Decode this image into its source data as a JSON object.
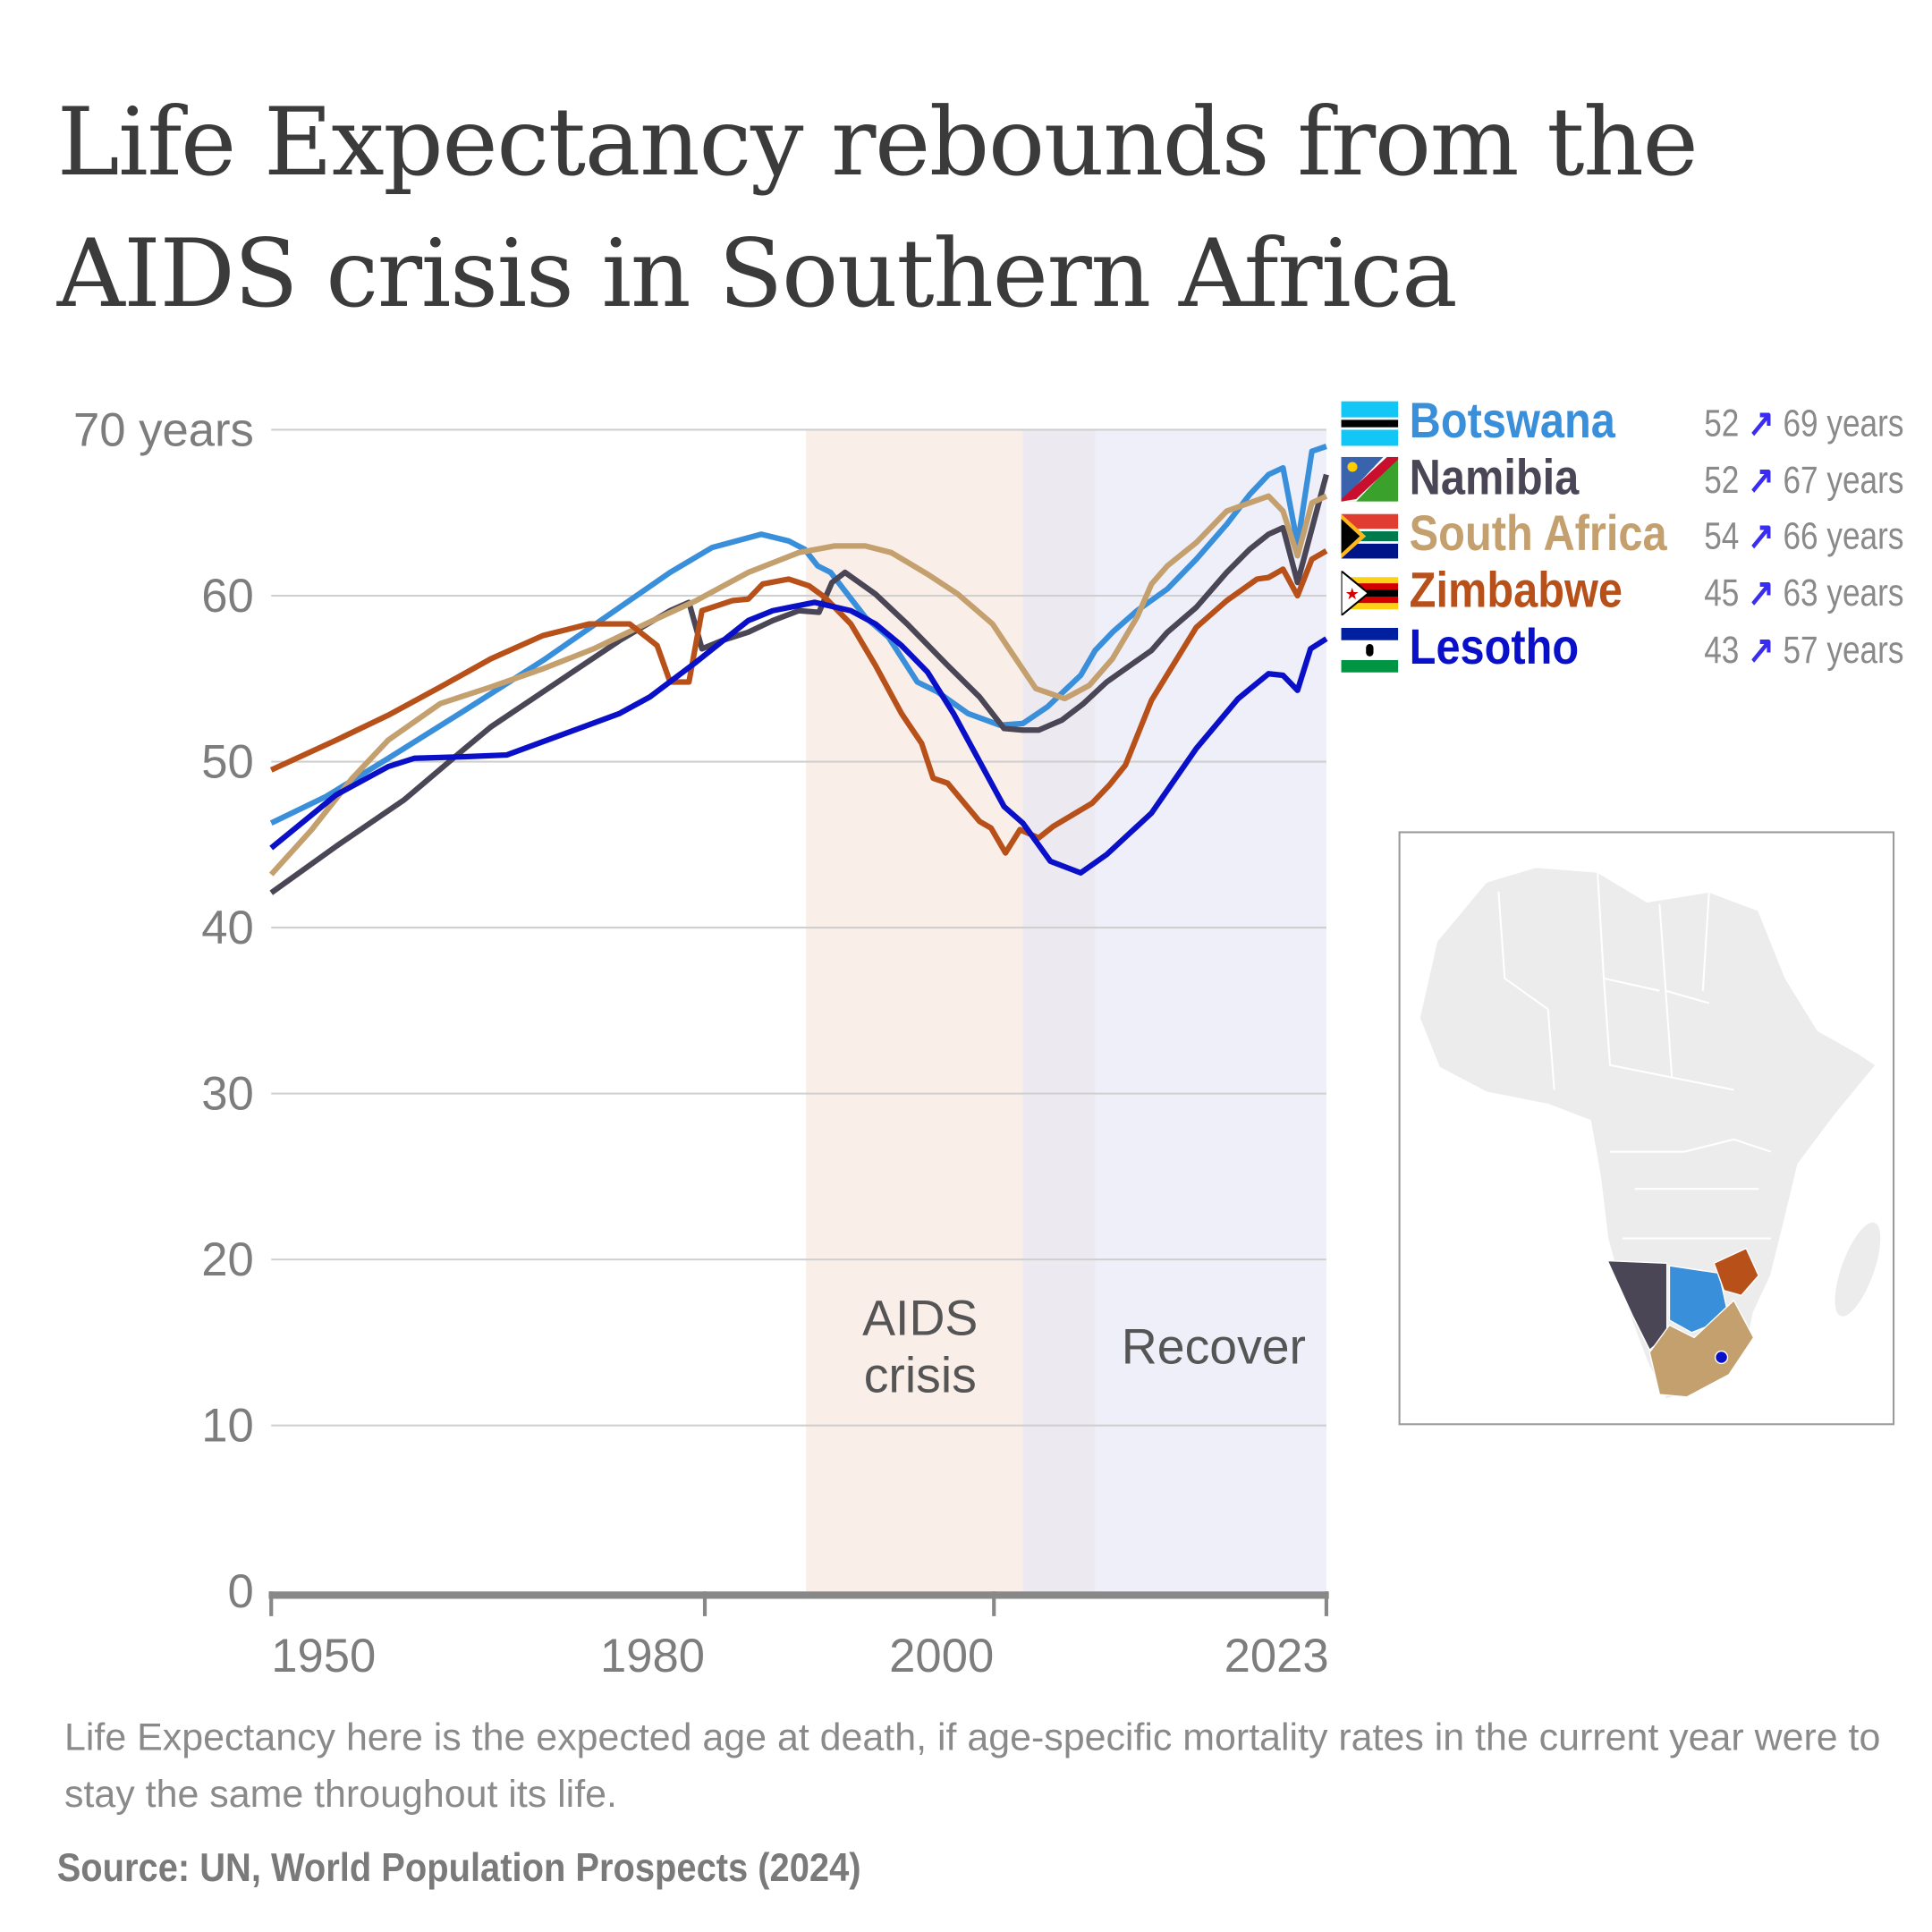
{
  "title_lines": [
    "Life Expectancy rebounds from the",
    "AIDS crisis in Southern Africa"
  ],
  "note": "Life Expectancy here is the expected age at death, if age-specific mortality rates in the current year were to stay the same throughout its life.",
  "source": "Source: UN, World Population Prospects (2024)",
  "legend": [
    {
      "name": "Botswana",
      "color": "#3a8fdb",
      "from": "52",
      "to": "69 years",
      "arrow": "↗"
    },
    {
      "name": "Namibia",
      "color": "#4a4655",
      "from": "52",
      "to": "67 years",
      "arrow": "↗"
    },
    {
      "name": "South Africa",
      "color": "#c4a06e",
      "from": "54",
      "to": "66 years",
      "arrow": "↗"
    },
    {
      "name": "Zimbabwe",
      "color": "#b8501a",
      "from": "45",
      "to": "63 years",
      "arrow": "↗"
    },
    {
      "name": "Lesotho",
      "color": "#0a0fc8",
      "from": "43",
      "to": "57 years",
      "arrow": "↗"
    }
  ],
  "chart_data": {
    "type": "line",
    "title": "Life Expectancy rebounds from the AIDS crisis in Southern Africa",
    "xlabel": "",
    "ylabel": "years",
    "xlim": [
      1950,
      2023
    ],
    "ylim": [
      0,
      70
    ],
    "y_ticks": [
      {
        "v": 0,
        "label": "0"
      },
      {
        "v": 10,
        "label": "10"
      },
      {
        "v": 20,
        "label": "20"
      },
      {
        "v": 30,
        "label": "30"
      },
      {
        "v": 40,
        "label": "40"
      },
      {
        "v": 50,
        "label": "50"
      },
      {
        "v": 60,
        "label": "60"
      },
      {
        "v": 70,
        "label": "70 years"
      }
    ],
    "x_ticks": [
      {
        "v": 1950,
        "label": "1950"
      },
      {
        "v": 1980,
        "label": "1980"
      },
      {
        "v": 2000,
        "label": "2000"
      },
      {
        "v": 2023,
        "label": "2023"
      }
    ],
    "grid": true,
    "legend_position": "top-right",
    "regions": [
      {
        "label_lines": [
          "AIDS",
          "crisis"
        ],
        "from": 1987,
        "to": 2007,
        "color": "#f8ece6"
      },
      {
        "label_lines": [
          "Recover"
        ],
        "from": 2002,
        "to": 2023,
        "color": "#e6e6f6"
      }
    ],
    "series": [
      {
        "name": "Botswana",
        "color": "#3a8fdb",
        "points": [
          [
            1950,
            46.3
          ],
          [
            1953.8,
            47.9
          ],
          [
            1958.1,
            50.2
          ],
          [
            1963.4,
            53.1
          ],
          [
            1968.8,
            56.1
          ],
          [
            1974.1,
            59.3
          ],
          [
            1977.6,
            61.4
          ],
          [
            1980.5,
            62.9
          ],
          [
            1983.9,
            63.7
          ],
          [
            1985.8,
            63.3
          ],
          [
            1986.9,
            62.8
          ],
          [
            1987.8,
            61.8
          ],
          [
            1988.7,
            61.4
          ],
          [
            1991.1,
            58.7
          ],
          [
            1992.7,
            57.5
          ],
          [
            1994.7,
            54.8
          ],
          [
            1996.1,
            54.2
          ],
          [
            1998.2,
            52.9
          ],
          [
            2000.4,
            52.2
          ],
          [
            2002,
            52.3
          ],
          [
            2003.7,
            53.3
          ],
          [
            2006,
            55.2
          ],
          [
            2007,
            56.7
          ],
          [
            2008.2,
            57.8
          ],
          [
            2009.9,
            59.1
          ],
          [
            2012,
            60.4
          ],
          [
            2014,
            62.2
          ],
          [
            2016.1,
            64.3
          ],
          [
            2017.7,
            66.1
          ],
          [
            2019,
            67.3
          ],
          [
            2020,
            67.7
          ],
          [
            2021,
            63.1
          ],
          [
            2022,
            68.7
          ],
          [
            2023,
            69.0
          ]
        ]
      },
      {
        "name": "Namibia",
        "color": "#4a4655",
        "points": [
          [
            1950,
            42.1
          ],
          [
            1954.5,
            44.9
          ],
          [
            1959.2,
            47.7
          ],
          [
            1963.4,
            50.8
          ],
          [
            1965.2,
            52.1
          ],
          [
            1968.8,
            54.2
          ],
          [
            1974.1,
            57.3
          ],
          [
            1977.6,
            59.1
          ],
          [
            1978.9,
            59.6
          ],
          [
            1979.8,
            56.8
          ],
          [
            1981.2,
            57.3
          ],
          [
            1983,
            57.8
          ],
          [
            1984.7,
            58.5
          ],
          [
            1986.5,
            59.1
          ],
          [
            1987.9,
            59.0
          ],
          [
            1988.8,
            60.8
          ],
          [
            1989.7,
            61.4
          ],
          [
            1991.8,
            60.1
          ],
          [
            1994,
            58.3
          ],
          [
            1996.8,
            55.8
          ],
          [
            1999,
            53.9
          ],
          [
            2000.7,
            52.0
          ],
          [
            2002,
            51.9
          ],
          [
            2003.1,
            51.9
          ],
          [
            2004.7,
            52.5
          ],
          [
            2006.2,
            53.5
          ],
          [
            2007.8,
            54.8
          ],
          [
            2010.9,
            56.7
          ],
          [
            2012,
            57.8
          ],
          [
            2014,
            59.3
          ],
          [
            2016.1,
            61.4
          ],
          [
            2017.7,
            62.8
          ],
          [
            2019,
            63.7
          ],
          [
            2020,
            64.1
          ],
          [
            2021,
            60.8
          ],
          [
            2023,
            67.3
          ]
        ]
      },
      {
        "name": "South Africa",
        "color": "#c4a06e",
        "points": [
          [
            1950,
            43.2
          ],
          [
            1952.8,
            45.9
          ],
          [
            1955.6,
            49.0
          ],
          [
            1958.1,
            51.3
          ],
          [
            1961.7,
            53.5
          ],
          [
            1965.2,
            54.5
          ],
          [
            1968.8,
            55.6
          ],
          [
            1972.3,
            56.8
          ],
          [
            1975.9,
            58.3
          ],
          [
            1979.4,
            59.7
          ],
          [
            1983,
            61.4
          ],
          [
            1986.5,
            62.6
          ],
          [
            1989,
            63.0
          ],
          [
            1991.1,
            63.0
          ],
          [
            1992.9,
            62.6
          ],
          [
            1995.4,
            61.3
          ],
          [
            1997.5,
            60.1
          ],
          [
            1999.9,
            58.3
          ],
          [
            2001.2,
            56.6
          ],
          [
            2002.9,
            54.4
          ],
          [
            2004.9,
            53.8
          ],
          [
            2006.6,
            54.6
          ],
          [
            2008.2,
            56.2
          ],
          [
            2009.9,
            58.7
          ],
          [
            2010.9,
            60.7
          ],
          [
            2012,
            61.8
          ],
          [
            2014,
            63.2
          ],
          [
            2016.1,
            65.1
          ],
          [
            2017.7,
            65.6
          ],
          [
            2019,
            66.0
          ],
          [
            2020,
            65.1
          ],
          [
            2021,
            62.4
          ],
          [
            2022,
            65.6
          ],
          [
            2023,
            66.0
          ]
        ]
      },
      {
        "name": "Zimbabwe",
        "color": "#b8501a",
        "points": [
          [
            1950,
            49.5
          ],
          [
            1954.5,
            51.3
          ],
          [
            1958.1,
            52.8
          ],
          [
            1961.7,
            54.5
          ],
          [
            1965.2,
            56.2
          ],
          [
            1968.8,
            57.6
          ],
          [
            1972,
            58.3
          ],
          [
            1974.8,
            58.3
          ],
          [
            1976.7,
            57.0
          ],
          [
            1977.6,
            54.8
          ],
          [
            1978.9,
            54.8
          ],
          [
            1979.8,
            59.1
          ],
          [
            1981.9,
            59.7
          ],
          [
            1983,
            59.8
          ],
          [
            1984,
            60.7
          ],
          [
            1985.8,
            61.0
          ],
          [
            1987.2,
            60.6
          ],
          [
            1988.3,
            59.9
          ],
          [
            1990.1,
            58.3
          ],
          [
            1991.8,
            55.8
          ],
          [
            1993.6,
            52.9
          ],
          [
            1995,
            51.1
          ],
          [
            1995.8,
            49.0
          ],
          [
            1996.8,
            48.7
          ],
          [
            1999,
            46.4
          ],
          [
            1999.8,
            46.0
          ],
          [
            2000.8,
            44.5
          ],
          [
            2001.8,
            45.9
          ],
          [
            2003.1,
            45.4
          ],
          [
            2004.1,
            46.1
          ],
          [
            2006.8,
            47.5
          ],
          [
            2008,
            48.6
          ],
          [
            2009.1,
            49.8
          ],
          [
            2010.9,
            53.7
          ],
          [
            2014,
            58.1
          ],
          [
            2016.1,
            59.7
          ],
          [
            2018.2,
            61.0
          ],
          [
            2019,
            61.1
          ],
          [
            2020,
            61.6
          ],
          [
            2021,
            60.0
          ],
          [
            2022,
            62.2
          ],
          [
            2023,
            62.7
          ]
        ]
      },
      {
        "name": "Lesotho",
        "color": "#0a0fc8",
        "points": [
          [
            1950,
            44.8
          ],
          [
            1954.5,
            48.0
          ],
          [
            1958.1,
            49.7
          ],
          [
            1959.9,
            50.2
          ],
          [
            1963.4,
            50.3
          ],
          [
            1966.3,
            50.4
          ],
          [
            1968.8,
            51.2
          ],
          [
            1974.1,
            52.9
          ],
          [
            1976.2,
            53.9
          ],
          [
            1979.4,
            56.0
          ],
          [
            1983,
            58.5
          ],
          [
            1984.7,
            59.1
          ],
          [
            1987.6,
            59.6
          ],
          [
            1990.1,
            59.1
          ],
          [
            1991.8,
            58.3
          ],
          [
            1993.6,
            57.0
          ],
          [
            1995.4,
            55.4
          ],
          [
            1997.2,
            52.9
          ],
          [
            2000.7,
            47.3
          ],
          [
            2002,
            46.3
          ],
          [
            2003.9,
            44.0
          ],
          [
            2006,
            43.3
          ],
          [
            2007.8,
            44.4
          ],
          [
            2010.9,
            46.9
          ],
          [
            2014,
            50.8
          ],
          [
            2016.9,
            53.8
          ],
          [
            2019,
            55.3
          ],
          [
            2020,
            55.2
          ],
          [
            2021,
            54.3
          ],
          [
            2021.9,
            56.8
          ],
          [
            2023,
            57.4
          ]
        ]
      }
    ]
  }
}
